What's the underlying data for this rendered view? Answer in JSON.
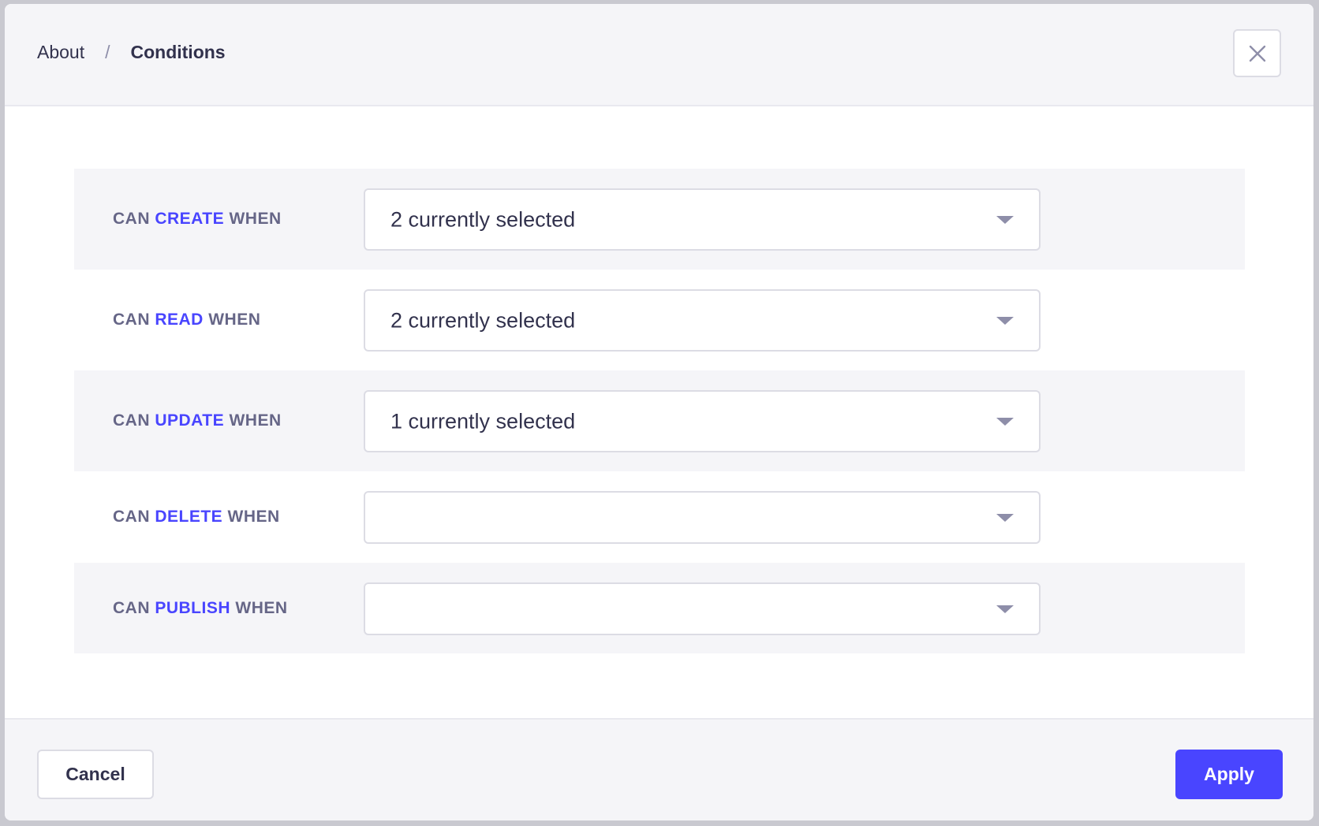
{
  "header": {
    "breadcrumb": [
      "About",
      "Conditions"
    ],
    "separator": "/",
    "close_icon": "close-icon"
  },
  "accent_color": "#4945ff",
  "rows": [
    {
      "prefix": "CAN",
      "action": "CREATE",
      "suffix": "WHEN",
      "value": "2 currently selected"
    },
    {
      "prefix": "CAN",
      "action": "READ",
      "suffix": "WHEN",
      "value": "2 currently selected"
    },
    {
      "prefix": "CAN",
      "action": "UPDATE",
      "suffix": "WHEN",
      "value": "1 currently selected"
    },
    {
      "prefix": "CAN",
      "action": "DELETE",
      "suffix": "WHEN",
      "value": ""
    },
    {
      "prefix": "CAN",
      "action": "PUBLISH",
      "suffix": "WHEN",
      "value": ""
    }
  ],
  "footer": {
    "cancel_label": "Cancel",
    "apply_label": "Apply"
  }
}
